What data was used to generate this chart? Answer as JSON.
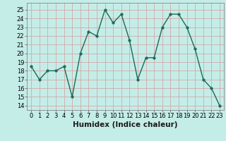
{
  "x": [
    0,
    1,
    2,
    3,
    4,
    5,
    6,
    7,
    8,
    9,
    10,
    11,
    12,
    13,
    14,
    15,
    16,
    17,
    18,
    19,
    20,
    21,
    22,
    23
  ],
  "y": [
    18.5,
    17.0,
    18.0,
    18.0,
    18.5,
    15.0,
    20.0,
    22.5,
    22.0,
    25.0,
    23.5,
    24.5,
    21.5,
    17.0,
    19.5,
    19.5,
    23.0,
    24.5,
    24.5,
    23.0,
    20.5,
    17.0,
    16.0,
    14.0
  ],
  "line_color": "#1a6b5a",
  "marker": "o",
  "marker_size": 2.5,
  "linewidth": 1.0,
  "xlabel": "Humidex (Indice chaleur)",
  "xlim": [
    -0.5,
    23.5
  ],
  "ylim": [
    13.5,
    25.8
  ],
  "yticks": [
    14,
    15,
    16,
    17,
    18,
    19,
    20,
    21,
    22,
    23,
    24,
    25
  ],
  "xticks": [
    0,
    1,
    2,
    3,
    4,
    5,
    6,
    7,
    8,
    9,
    10,
    11,
    12,
    13,
    14,
    15,
    16,
    17,
    18,
    19,
    20,
    21,
    22,
    23
  ],
  "bg_color": "#c5ede8",
  "grid_color": "#d4a8a8",
  "tick_fontsize": 6,
  "xlabel_fontsize": 7.5
}
